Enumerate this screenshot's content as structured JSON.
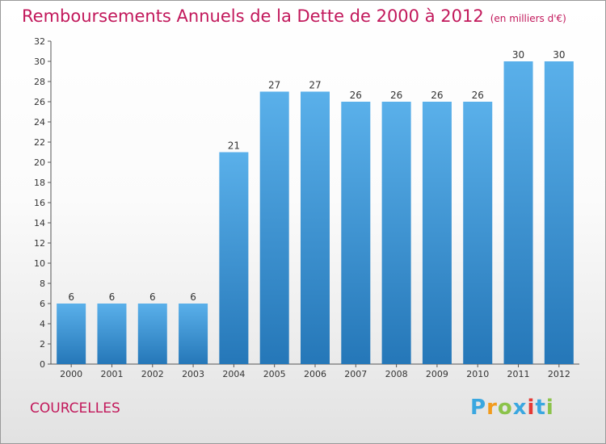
{
  "title": "Remboursements Annuels de la Dette de 2000 à 2012",
  "unit": "(en milliers d'€)",
  "commune": "COURCELLES",
  "logo": {
    "text": "Proxiti",
    "letters": [
      "P",
      "r",
      "o",
      "x",
      "i",
      "t",
      "i"
    ],
    "colors": [
      "#3aa7e0",
      "#f29b1d",
      "#8bc34a",
      "#3aa7e0",
      "#e53935",
      "#3aa7e0",
      "#8bc34a"
    ]
  },
  "colors": {
    "bar": "#4aa3e0",
    "bar_dark": "#2a7fc0",
    "title": "#c2185b",
    "text": "#333333"
  },
  "chart_data": {
    "type": "bar",
    "title": "Remboursements Annuels de la Dette de 2000 à 2012",
    "subtitle": "(en milliers d'€)",
    "categories": [
      "2000",
      "2001",
      "2002",
      "2003",
      "2004",
      "2005",
      "2006",
      "2007",
      "2008",
      "2009",
      "2010",
      "2011",
      "2012"
    ],
    "values": [
      6,
      6,
      6,
      6,
      21,
      27,
      27,
      26,
      26,
      26,
      26,
      30,
      30
    ],
    "ylim": [
      0,
      32
    ],
    "yticks": [
      0,
      2,
      4,
      6,
      8,
      10,
      12,
      14,
      16,
      18,
      20,
      22,
      24,
      26,
      28,
      30,
      32
    ],
    "grid": false,
    "data_labels": true
  }
}
